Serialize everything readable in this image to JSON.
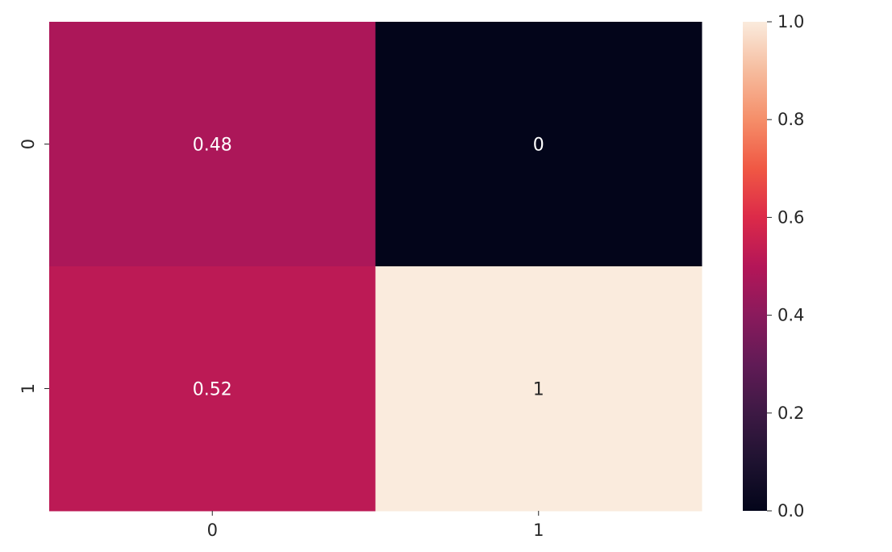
{
  "chart_data": {
    "type": "heatmap",
    "x_categories": [
      "0",
      "1"
    ],
    "y_categories": [
      "0",
      "1"
    ],
    "values": [
      [
        0.48,
        0
      ],
      [
        0.52,
        1
      ]
    ],
    "annotations": [
      [
        "0.48",
        "0"
      ],
      [
        "0.52",
        "1"
      ]
    ],
    "colorbar": {
      "range": [
        0.0,
        1.0
      ],
      "ticks": [
        "0.0",
        "0.2",
        "0.4",
        "0.6",
        "0.8",
        "1.0"
      ],
      "colormap": "rocket"
    },
    "grid": false
  }
}
